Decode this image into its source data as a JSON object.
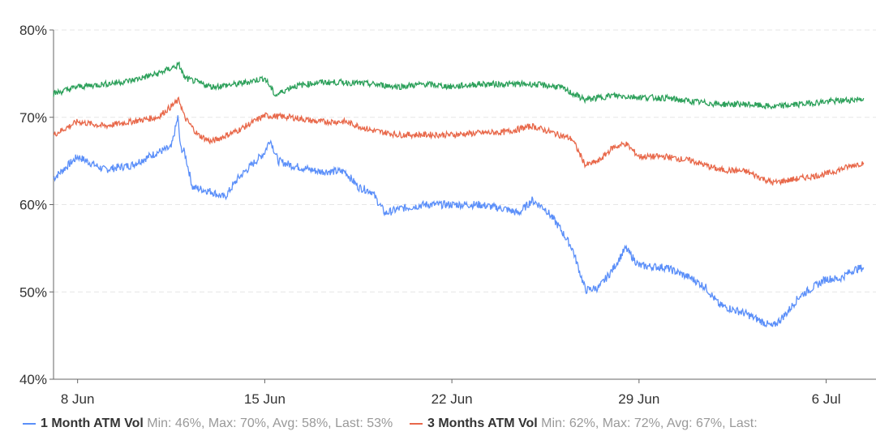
{
  "chart_data": {
    "type": "line",
    "xlabel": "",
    "ylabel": "",
    "ylim": [
      40,
      80
    ],
    "y_ticks": [
      "40%",
      "50%",
      "60%",
      "70%",
      "80%"
    ],
    "y_tick_values": [
      40,
      50,
      60,
      70,
      80
    ],
    "x_ticks": [
      "8 Jun",
      "15 Jun",
      "22 Jun",
      "29 Jun",
      "6 Jul"
    ],
    "x_tick_values": [
      8,
      15,
      22,
      29,
      36
    ],
    "xlim": [
      7.1,
      37.5
    ],
    "grid": true,
    "legend_placement": "bottom",
    "series": [
      {
        "name": "1 Month ATM Vol",
        "stats": "Min: 46%, Max: 70%, Avg: 58%, Last: 53%",
        "color": "#5b8ff9",
        "x": [
          7.1,
          8,
          9,
          10,
          11,
          11.5,
          11.75,
          11.85,
          12,
          12.3,
          13,
          13.5,
          14,
          15,
          15.2,
          15.5,
          16,
          17,
          18,
          18.5,
          19,
          19.5,
          20,
          21,
          22,
          23,
          24,
          24.5,
          25,
          25.5,
          26,
          26.5,
          27,
          27.5,
          28,
          28.5,
          29,
          30,
          31,
          31.5,
          32,
          33,
          34,
          34.5,
          35,
          36,
          36.5,
          37,
          37.4
        ],
        "y": [
          63,
          65.5,
          64,
          64.5,
          66,
          66.5,
          70,
          66.5,
          66,
          62,
          61.5,
          60.8,
          63,
          66,
          67.5,
          65,
          64.5,
          63.8,
          63.8,
          62,
          61.5,
          59,
          59.5,
          60,
          60,
          60,
          59.5,
          59,
          60.5,
          59.5,
          57.5,
          55,
          50.2,
          50.5,
          52.5,
          55,
          53,
          52.8,
          51.5,
          50.5,
          48.5,
          47.5,
          46,
          47.5,
          49.5,
          51.5,
          51.5,
          52.5,
          52.8
        ]
      },
      {
        "name": "3 Months ATM Vol",
        "stats": "Min: 62%, Max: 72%, Avg: 67%, Last:",
        "color": "#e8684a",
        "x": [
          7.1,
          8,
          9,
          10,
          11,
          11.8,
          12,
          12.5,
          13,
          14,
          15,
          16,
          17,
          18,
          19,
          20,
          21,
          22,
          23,
          24,
          25,
          26,
          26.5,
          27,
          27.5,
          28,
          28.5,
          29,
          30,
          31,
          32,
          33,
          34,
          35,
          36,
          37,
          37.4
        ],
        "y": [
          68,
          69.5,
          69,
          69.5,
          70,
          72,
          70,
          68,
          67.2,
          68.5,
          70.2,
          70,
          69.5,
          69.5,
          68.5,
          68,
          68,
          68,
          68.2,
          68.3,
          69,
          68,
          67.5,
          64.5,
          65,
          66.5,
          67,
          65.5,
          65.5,
          65,
          64,
          63.8,
          62.5,
          63,
          63.5,
          64.5,
          64.8
        ]
      },
      {
        "color": "#2ca05a",
        "x": [
          7.1,
          8,
          9,
          10,
          11,
          11.8,
          12,
          13,
          14,
          15,
          15.4,
          16,
          17,
          18,
          19,
          20,
          21,
          22,
          23,
          24,
          25,
          26,
          27,
          28,
          29,
          30,
          31,
          32,
          33,
          34,
          35,
          36,
          37,
          37.4
        ],
        "y": [
          72.7,
          73.5,
          73.8,
          74.2,
          75,
          76,
          74.5,
          73.5,
          73.8,
          74.5,
          72.5,
          73.5,
          74,
          74,
          73.8,
          73.5,
          73.8,
          73.5,
          73.8,
          73.8,
          73.8,
          73.5,
          72,
          72.5,
          72.3,
          72.2,
          71.8,
          71.5,
          71.5,
          71.2,
          71.5,
          71.8,
          72,
          72.2
        ]
      }
    ]
  }
}
